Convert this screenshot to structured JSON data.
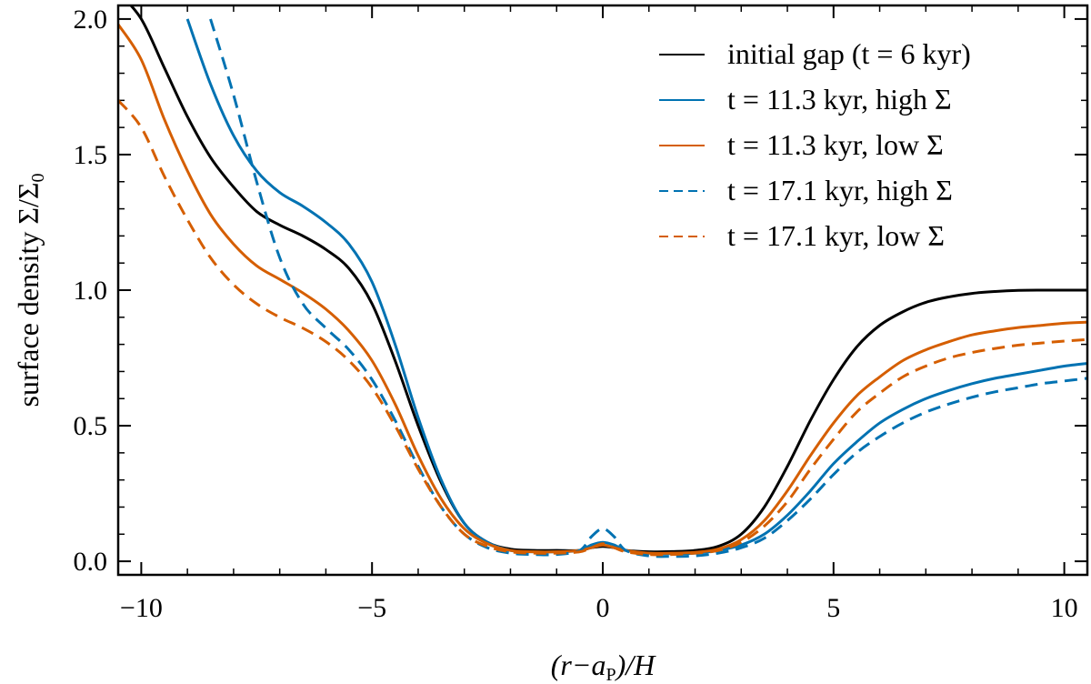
{
  "chart_data": {
    "type": "line",
    "xlabel": "(r−a",
    "xlabel_sub": "P",
    "xlabel_end": ")/H",
    "ylabel": "surface density Σ/Σ",
    "ylabel_sub": "0",
    "xlim": [
      -10.5,
      10.5
    ],
    "ylim": [
      -0.05,
      2.05
    ],
    "xticks": [
      -10,
      -5,
      0,
      5,
      10
    ],
    "xtick_labels": [
      "−10",
      "−5",
      "0",
      "5",
      "10"
    ],
    "yticks": [
      0.0,
      0.5,
      1.0,
      1.5,
      2.0
    ],
    "ytick_labels": [
      "0.0",
      "0.5",
      "1.0",
      "1.5",
      "2.0"
    ],
    "legend_position": "top-right",
    "x": [
      -10.5,
      -10,
      -9.5,
      -9,
      -8.5,
      -8,
      -7.5,
      -7,
      -6.5,
      -6,
      -5.5,
      -5,
      -4.5,
      -4,
      -3.5,
      -3,
      -2.5,
      -2,
      -1.5,
      -1,
      -0.5,
      -0.25,
      0,
      0.25,
      0.5,
      1,
      1.5,
      2,
      2.5,
      3,
      3.5,
      4,
      4.5,
      5,
      5.5,
      6,
      6.5,
      7,
      7.5,
      8,
      8.5,
      9,
      9.5,
      10,
      10.5
    ],
    "series": [
      {
        "name": "initial gap (t = 6 kyr)",
        "color": "#000000",
        "dash": "solid",
        "values": [
          2.1,
          2.0,
          1.82,
          1.64,
          1.49,
          1.38,
          1.29,
          1.24,
          1.2,
          1.15,
          1.08,
          0.95,
          0.74,
          0.5,
          0.29,
          0.14,
          0.07,
          0.045,
          0.04,
          0.04,
          0.04,
          0.05,
          0.055,
          0.05,
          0.04,
          0.035,
          0.036,
          0.04,
          0.055,
          0.1,
          0.2,
          0.35,
          0.52,
          0.67,
          0.79,
          0.87,
          0.92,
          0.955,
          0.975,
          0.988,
          0.995,
          0.999,
          1.0,
          1.0,
          1.0
        ]
      },
      {
        "name": "t = 11.3 kyr, high Σ",
        "color": "#0072B2",
        "dash": "solid",
        "values": [
          null,
          null,
          null,
          2.0,
          1.76,
          1.57,
          1.44,
          1.36,
          1.31,
          1.25,
          1.17,
          1.03,
          0.8,
          0.53,
          0.3,
          0.14,
          0.07,
          0.04,
          0.035,
          0.035,
          0.04,
          0.06,
          0.07,
          0.06,
          0.04,
          0.03,
          0.028,
          0.03,
          0.04,
          0.06,
          0.1,
          0.17,
          0.26,
          0.36,
          0.44,
          0.51,
          0.56,
          0.6,
          0.63,
          0.655,
          0.675,
          0.69,
          0.705,
          0.72,
          0.73
        ]
      },
      {
        "name": "t = 11.3 kyr, low Σ",
        "color": "#D55E00",
        "dash": "solid",
        "values": [
          1.98,
          1.85,
          1.63,
          1.44,
          1.28,
          1.17,
          1.09,
          1.04,
          0.99,
          0.93,
          0.85,
          0.74,
          0.58,
          0.39,
          0.23,
          0.12,
          0.065,
          0.04,
          0.035,
          0.035,
          0.04,
          0.05,
          0.06,
          0.05,
          0.04,
          0.03,
          0.03,
          0.033,
          0.045,
          0.08,
          0.15,
          0.26,
          0.39,
          0.51,
          0.61,
          0.68,
          0.74,
          0.78,
          0.81,
          0.835,
          0.85,
          0.862,
          0.87,
          0.878,
          0.882
        ]
      },
      {
        "name": "t = 17.1 kyr, high Σ",
        "color": "#0072B2",
        "dash": "dashed",
        "values": [
          null,
          null,
          null,
          null,
          2.0,
          1.72,
          1.4,
          1.12,
          0.95,
          0.86,
          0.78,
          0.67,
          0.52,
          0.35,
          0.2,
          0.1,
          0.05,
          0.03,
          0.025,
          0.025,
          0.04,
          0.09,
          0.12,
          0.09,
          0.04,
          0.02,
          0.018,
          0.02,
          0.03,
          0.05,
          0.085,
          0.15,
          0.23,
          0.32,
          0.4,
          0.46,
          0.51,
          0.55,
          0.58,
          0.605,
          0.625,
          0.64,
          0.655,
          0.665,
          0.675
        ]
      },
      {
        "name": "t = 17.1 kyr, low Σ",
        "color": "#D55E00",
        "dash": "dashed",
        "values": [
          1.7,
          1.6,
          1.42,
          1.26,
          1.12,
          1.02,
          0.95,
          0.9,
          0.86,
          0.81,
          0.74,
          0.64,
          0.5,
          0.34,
          0.2,
          0.1,
          0.055,
          0.035,
          0.03,
          0.03,
          0.035,
          0.05,
          0.065,
          0.05,
          0.035,
          0.025,
          0.025,
          0.03,
          0.04,
          0.07,
          0.13,
          0.22,
          0.34,
          0.45,
          0.55,
          0.62,
          0.68,
          0.72,
          0.75,
          0.77,
          0.785,
          0.797,
          0.805,
          0.812,
          0.818
        ]
      }
    ]
  }
}
